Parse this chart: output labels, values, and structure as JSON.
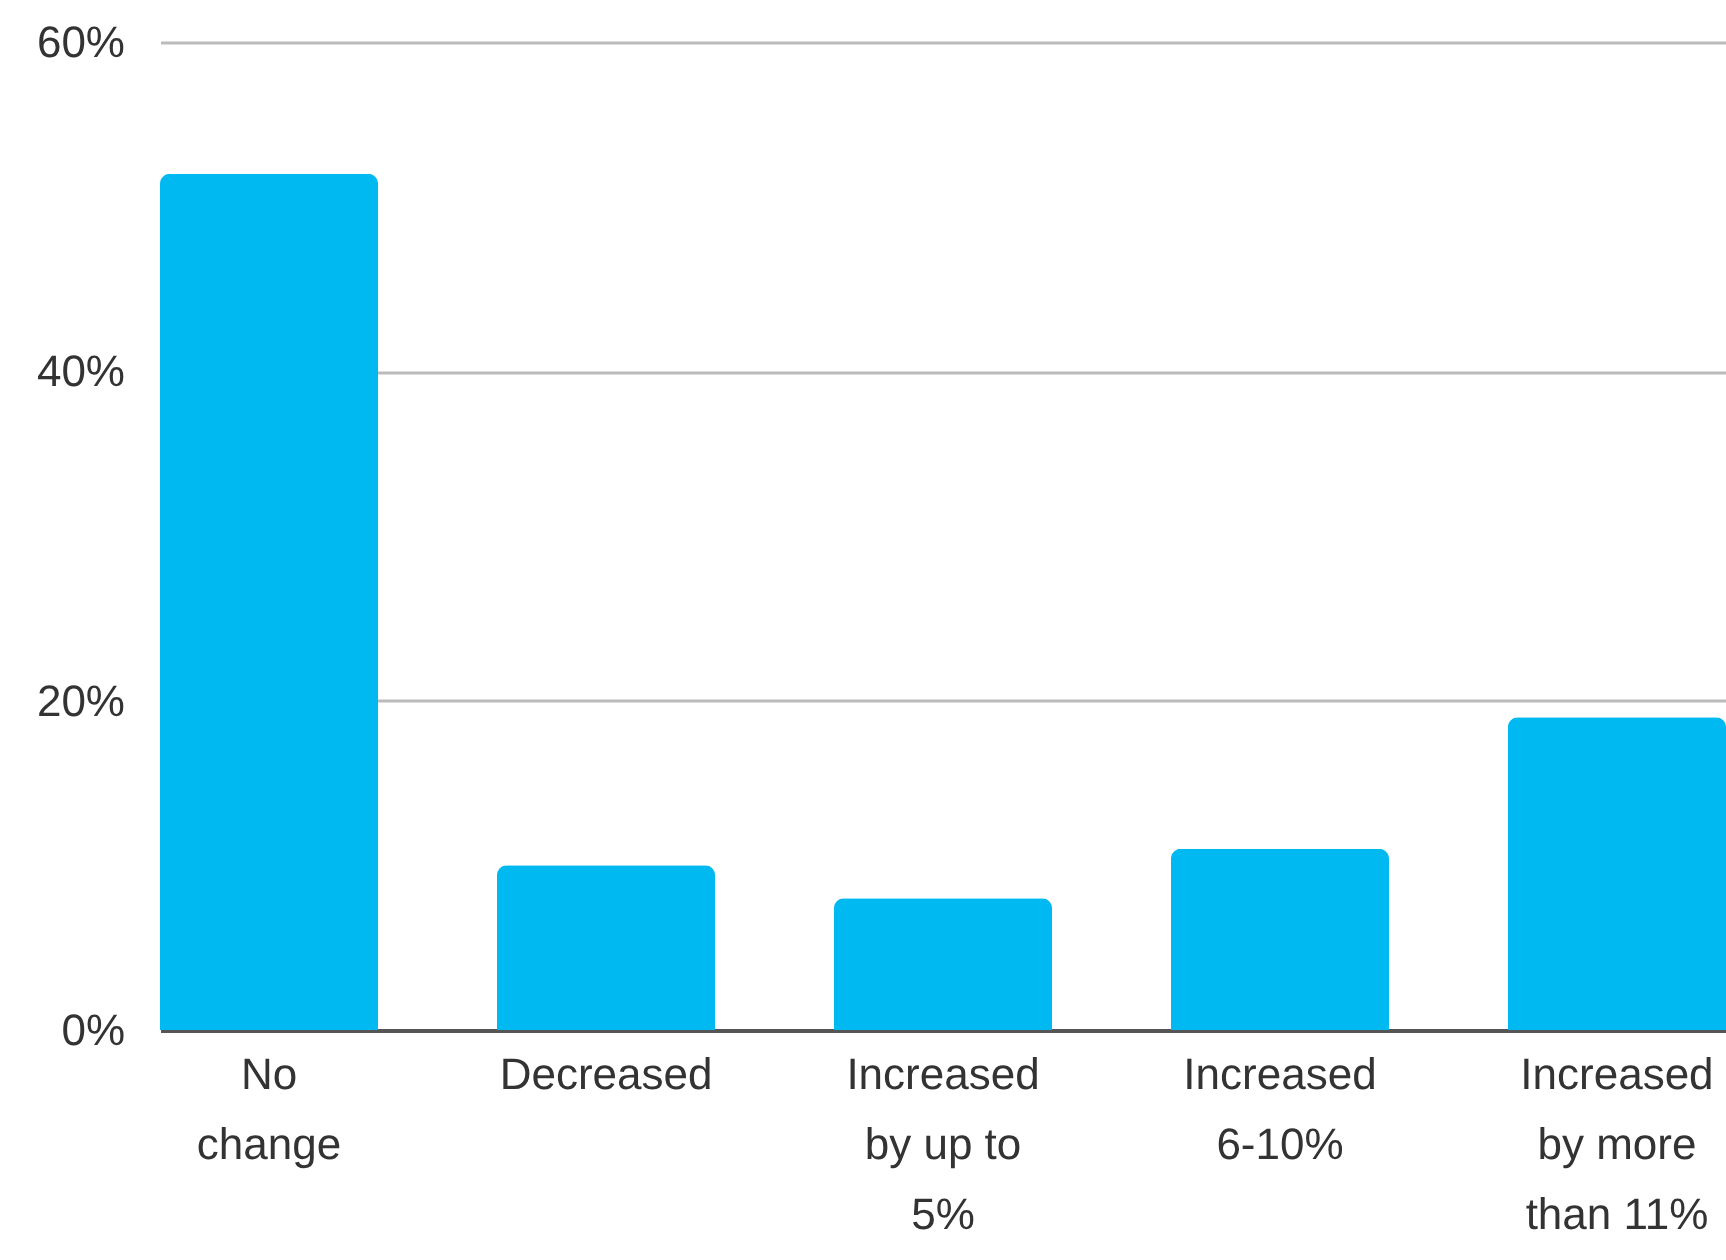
{
  "chart_data": {
    "type": "bar",
    "categories": [
      "No change",
      "Decreased",
      "Increased by up to 5%",
      "Increased 6-10%",
      "Increased by more than 11%"
    ],
    "values": [
      52,
      10,
      8,
      11,
      19
    ],
    "color": "#00b9f1",
    "ylim": [
      0,
      60
    ],
    "yticks": [
      {
        "value": 0,
        "label": "0%"
      },
      {
        "value": 20,
        "label": "20%"
      },
      {
        "value": 40,
        "label": "40%"
      },
      {
        "value": 60,
        "label": "60%"
      }
    ],
    "grid": "y"
  }
}
